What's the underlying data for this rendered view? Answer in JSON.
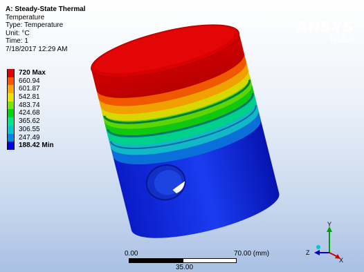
{
  "info": {
    "title": "A: Steady-State Thermal",
    "type_name": "Temperature",
    "type_line": "Type: Temperature",
    "unit_line": "Unit: °C",
    "time_line": "Time: 1",
    "date_line": "7/18/2017 12:29 AM"
  },
  "brand": {
    "name": "ANSYS",
    "version": "R15.0"
  },
  "legend": {
    "items": [
      {
        "label": "720 Max",
        "color": "#e60000",
        "bold": true
      },
      {
        "label": "660.94",
        "color": "#ff5500"
      },
      {
        "label": "601.87",
        "color": "#ffaa00"
      },
      {
        "label": "542.81",
        "color": "#e6e600"
      },
      {
        "label": "483.74",
        "color": "#77e600"
      },
      {
        "label": "424.68",
        "color": "#00d600"
      },
      {
        "label": "365.62",
        "color": "#00e68a"
      },
      {
        "label": "306.55",
        "color": "#00c8c8"
      },
      {
        "label": "247.49",
        "color": "#0088e6"
      },
      {
        "label": "188.42 Min",
        "color": "#0000e6",
        "bold": true
      }
    ]
  },
  "scale": {
    "left": "0.00",
    "right": "70.00 (mm)",
    "mid": "35.00"
  },
  "triad": {
    "x": "X",
    "y": "Y",
    "z": "Z"
  }
}
